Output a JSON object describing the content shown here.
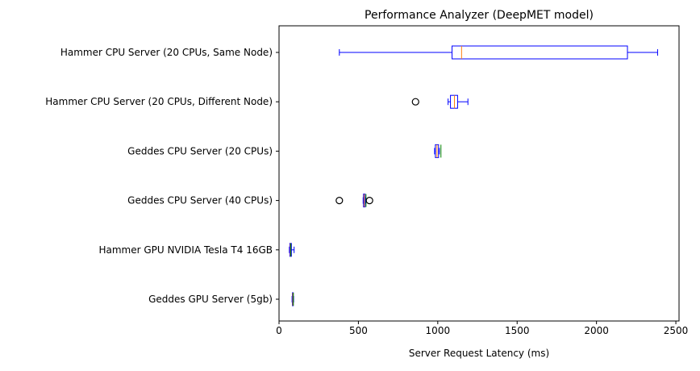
{
  "chart_data": {
    "type": "boxplot",
    "orientation": "horizontal",
    "title": "Performance Analyzer (DeepMET model)",
    "xlabel": "Server Request Latency (ms)",
    "ylabel": "",
    "xlim": [
      0,
      2520
    ],
    "xticks": [
      0,
      500,
      1000,
      1500,
      2000,
      2500
    ],
    "grid": false,
    "colors": {
      "box": "#0000ff",
      "median": "#ff7f0e",
      "mean": "#008000",
      "flier": "#000000",
      "axis": "#000000"
    },
    "categories": [
      "Hammer CPU Server (20 CPUs, Same Node)",
      "Hammer CPU Server (20 CPUs, Different Node)",
      "Geddes CPU Server (20 CPUs)",
      "Geddes CPU Server (40 CPUs)",
      "Hammer GPU NVIDIA Tesla T4 16GB",
      "Geddes GPU Server (5gb)"
    ],
    "series": [
      {
        "whisker_low": 380,
        "q1": 1090,
        "median": 1150,
        "q3": 2195,
        "whisker_high": 2385,
        "mean": null,
        "fliers": []
      },
      {
        "whisker_low": 1065,
        "q1": 1080,
        "median": 1105,
        "q3": 1125,
        "whisker_high": 1190,
        "mean": null,
        "fliers": [
          860
        ]
      },
      {
        "whisker_low": 980,
        "q1": 985,
        "median": 995,
        "q3": 1005,
        "whisker_high": 1010,
        "mean": 1020,
        "fliers": []
      },
      {
        "whisker_low": 530,
        "q1": 532,
        "median": 537,
        "q3": 542,
        "whisker_high": 545,
        "mean": 548,
        "fliers": [
          380,
          570
        ]
      },
      {
        "whisker_low": 65,
        "q1": 68,
        "median": 72,
        "q3": 78,
        "whisker_high": 95,
        "mean": 74,
        "fliers": []
      },
      {
        "whisker_low": 82,
        "q1": 84,
        "median": 87,
        "q3": 90,
        "whisker_high": 92,
        "mean": 90,
        "fliers": []
      }
    ]
  }
}
